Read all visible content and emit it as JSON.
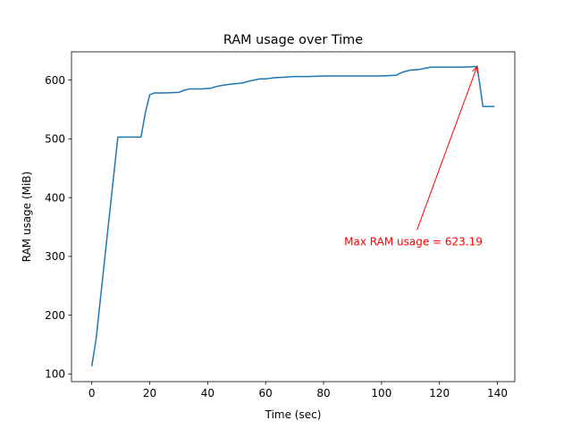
{
  "chart_data": {
    "type": "line",
    "title": "RAM usage over Time",
    "xlabel": "Time (sec)",
    "ylabel": "RAM usage (MiB)",
    "xlim": [
      -7,
      146
    ],
    "ylim": [
      87,
      648
    ],
    "xticks": [
      0,
      20,
      40,
      60,
      80,
      100,
      120,
      140
    ],
    "yticks": [
      100,
      200,
      300,
      400,
      500,
      600
    ],
    "grid": false,
    "series": [
      {
        "color": "#1f77b4",
        "x": [
          0,
          1.5,
          9,
          10,
          14,
          17,
          18.5,
          20,
          21.5,
          25,
          30,
          32,
          34,
          38,
          41,
          43,
          45,
          48,
          52,
          55,
          58,
          60,
          63,
          67,
          70,
          75,
          80,
          90,
          100,
          105,
          107,
          110,
          113,
          117,
          122,
          128,
          133,
          135,
          137,
          139
        ],
        "y": [
          113,
          160,
          503,
          503,
          503,
          503,
          545,
          575,
          578,
          578,
          579,
          583,
          585,
          585,
          586,
          589,
          591,
          593,
          595,
          599,
          602,
          602,
          604,
          605,
          606,
          606,
          607,
          607,
          607,
          608,
          613,
          617,
          618,
          622,
          622,
          622,
          623.19,
          555,
          555,
          555
        ],
        "linewidth": 1.5
      }
    ],
    "annotations": [
      {
        "text": "Max RAM usage = 623.19",
        "text_anchor_data": [
          111,
          325
        ],
        "arrow_target_data": [
          133,
          623.19
        ],
        "color": "#ff0000"
      }
    ]
  }
}
